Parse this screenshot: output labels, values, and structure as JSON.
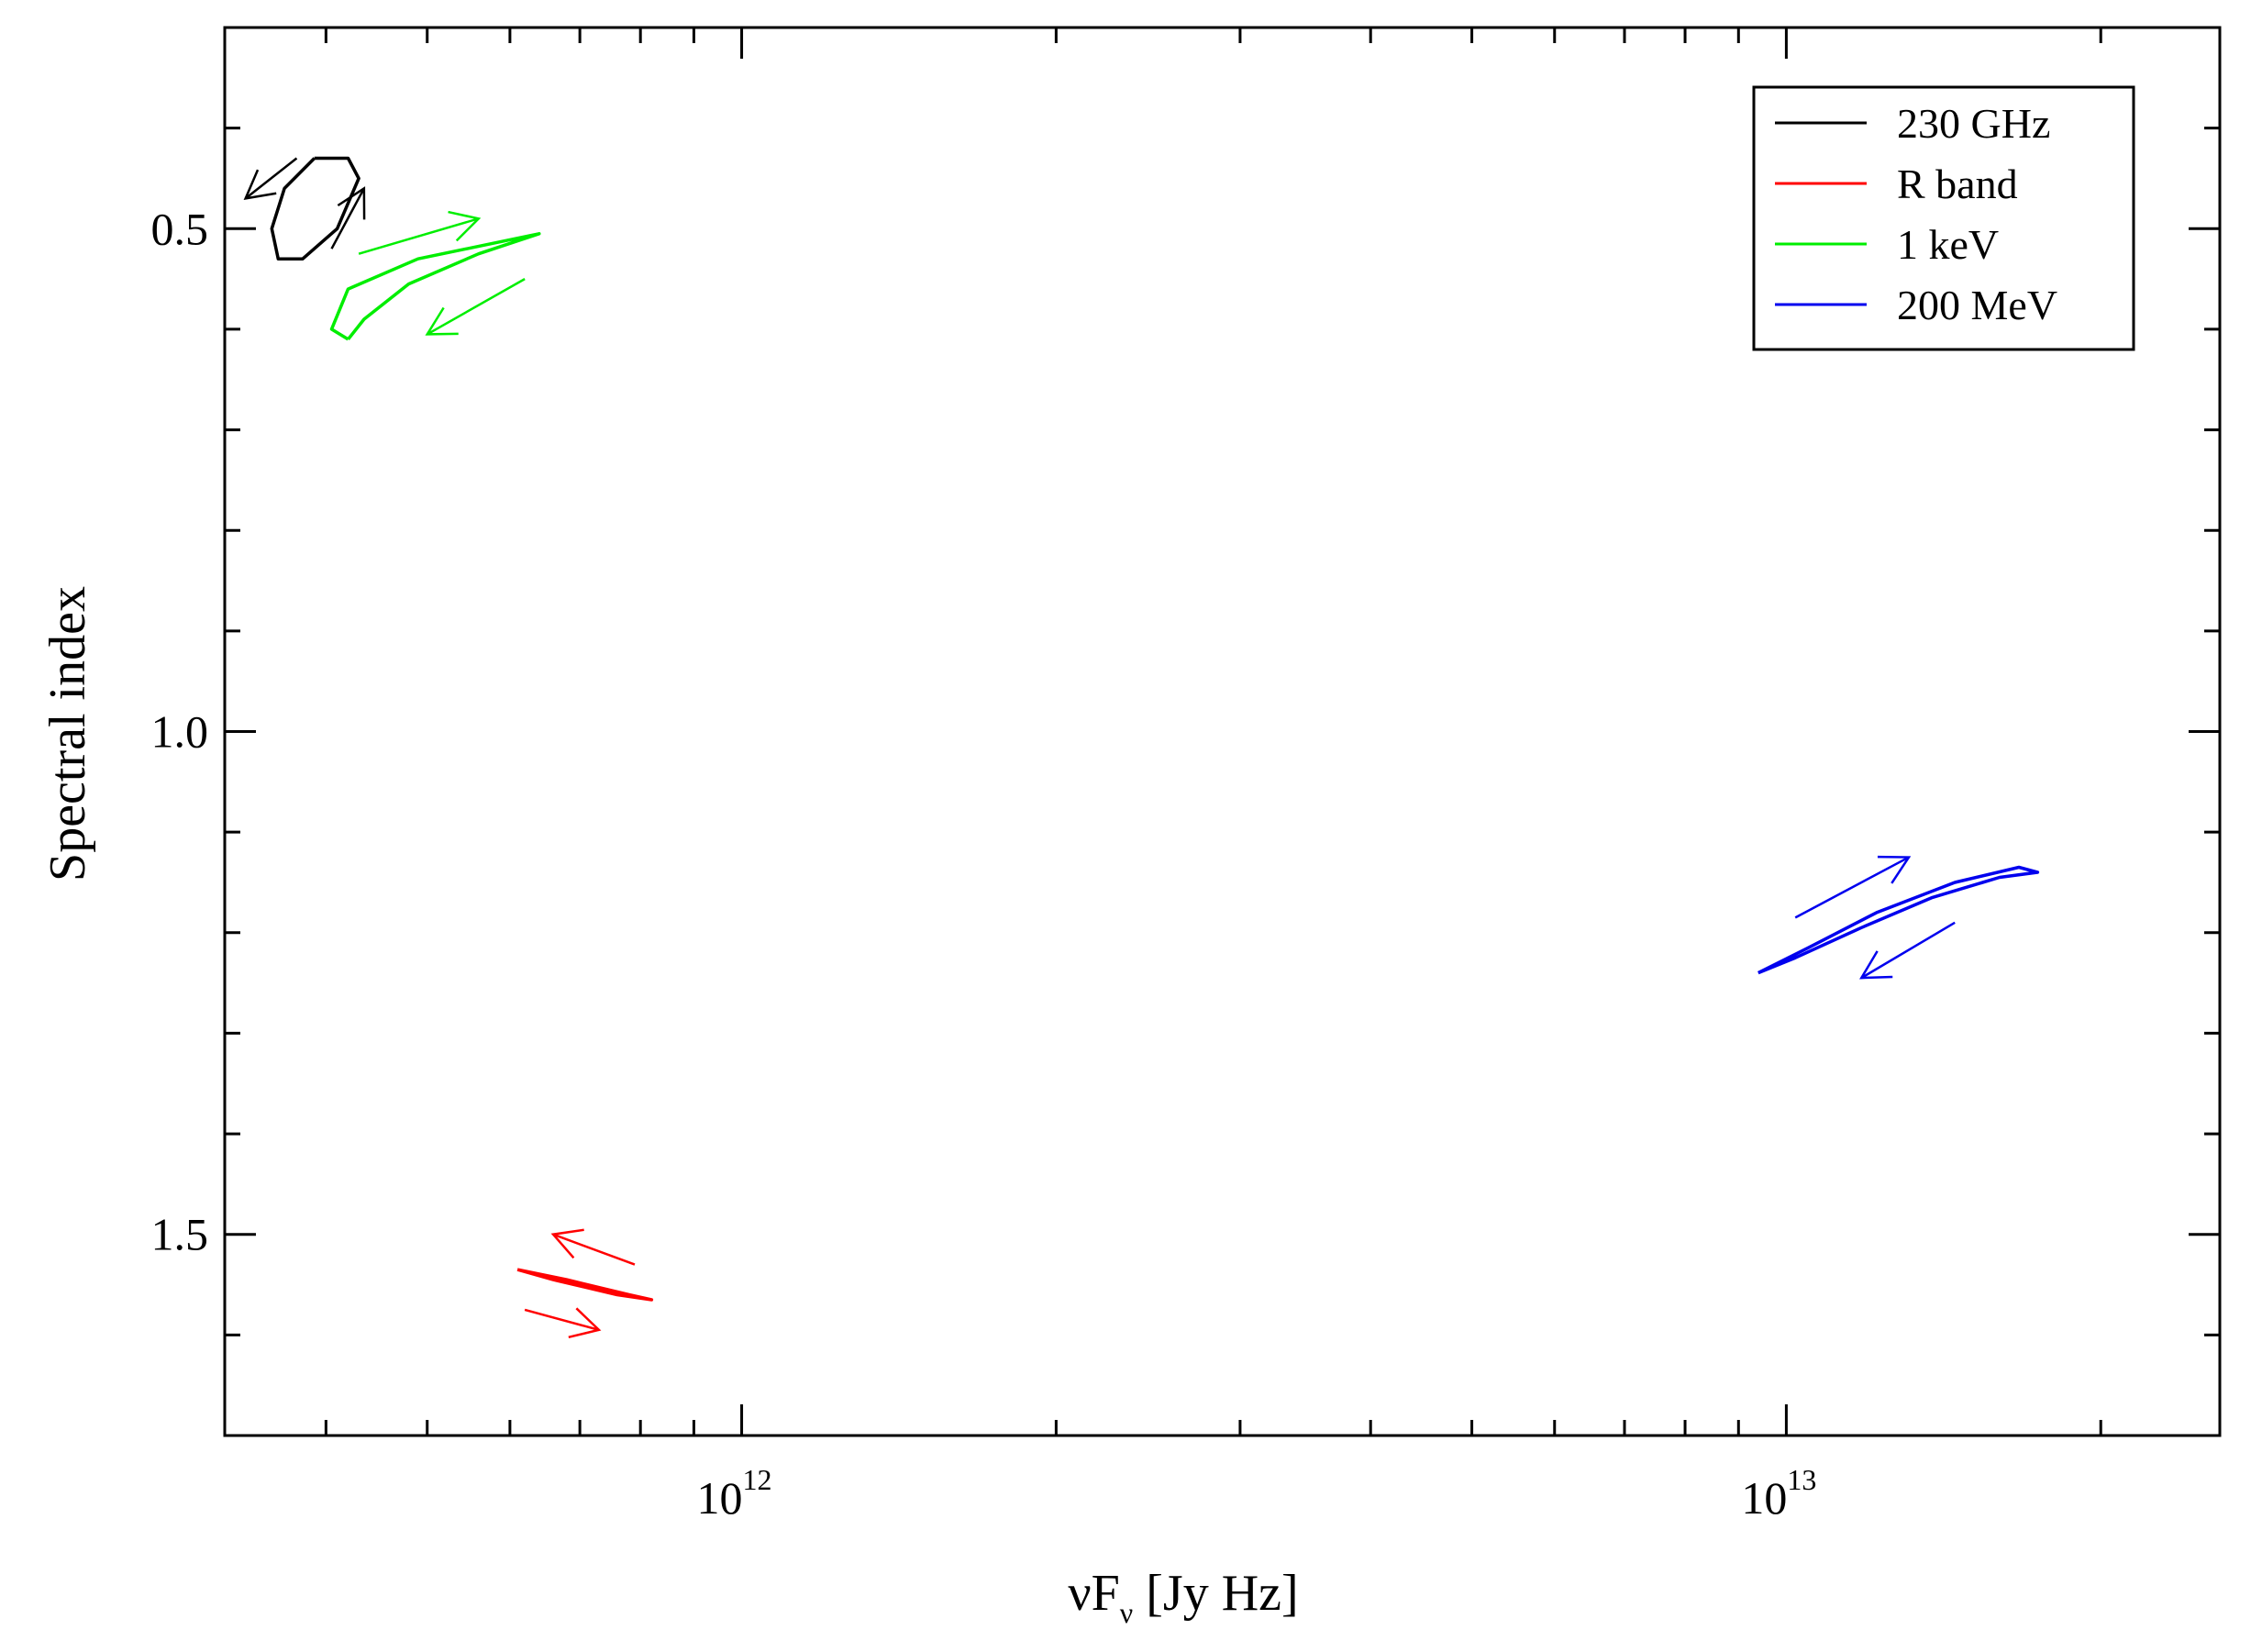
{
  "chart_data": {
    "type": "line",
    "xlabel": "νFν [Jy Hz]",
    "xlabel_parts": {
      "main": "νF",
      "sub": "ν",
      "rest": " [Jy Hz]"
    },
    "ylabel": "Spectral index",
    "x_scale": "log",
    "xlim": [
      320000000000.0,
      26000000000000.0
    ],
    "ylim": [
      0.3,
      1.7
    ],
    "y_inverted": true,
    "x_major_ticks": [
      {
        "value": 1000000000000.0,
        "base": "10",
        "exp": "12"
      },
      {
        "value": 10000000000000.0,
        "base": "10",
        "exp": "13"
      }
    ],
    "y_major_ticks": [
      {
        "value": 0.5,
        "label": "0.5"
      },
      {
        "value": 1.0,
        "label": "1.0"
      },
      {
        "value": 1.5,
        "label": "1.5"
      }
    ],
    "y_minor_step": 0.1,
    "grid": false,
    "legend_position": "top-right",
    "series": [
      {
        "name": "230 GHz",
        "color": "#000000",
        "points": [
          [
            390000000000.0,
            0.43
          ],
          [
            420000000000.0,
            0.43
          ],
          [
            430000000000.0,
            0.45
          ],
          [
            410000000000.0,
            0.5
          ],
          [
            380000000000.0,
            0.53
          ],
          [
            360000000000.0,
            0.53
          ],
          [
            355000000000.0,
            0.5
          ],
          [
            365000000000.0,
            0.46
          ],
          [
            390000000000.0,
            0.43
          ]
        ],
        "arrows": [
          {
            "from": [
              375000000000.0,
              0.43
            ],
            "to": [
              335000000000.0,
              0.47
            ]
          },
          {
            "from": [
              405000000000.0,
              0.52
            ],
            "to": [
              435000000000.0,
              0.46
            ]
          }
        ]
      },
      {
        "name": "R band",
        "color": "#ff0000",
        "points": [
          [
            610000000000.0,
            1.535
          ],
          [
            680000000000.0,
            1.545
          ],
          [
            780000000000.0,
            1.56
          ],
          [
            820000000000.0,
            1.565
          ],
          [
            760000000000.0,
            1.56
          ],
          [
            660000000000.0,
            1.545
          ],
          [
            610000000000.0,
            1.535
          ]
        ],
        "arrows": [
          {
            "from": [
              790000000000.0,
              1.53
            ],
            "to": [
              660000000000.0,
              1.5
            ]
          },
          {
            "from": [
              620000000000.0,
              1.575
            ],
            "to": [
              730000000000.0,
              1.595
            ]
          }
        ]
      },
      {
        "name": "1 keV",
        "color": "#00ee00",
        "points": [
          [
            420000000000.0,
            0.61
          ],
          [
            405000000000.0,
            0.6
          ],
          [
            420000000000.0,
            0.56
          ],
          [
            490000000000.0,
            0.53
          ],
          [
            640000000000.0,
            0.505
          ],
          [
            560000000000.0,
            0.525
          ],
          [
            480000000000.0,
            0.555
          ],
          [
            435000000000.0,
            0.59
          ],
          [
            420000000000.0,
            0.61
          ]
        ],
        "arrows": [
          {
            "from": [
              430000000000.0,
              0.525
            ],
            "to": [
              560000000000.0,
              0.49
            ]
          },
          {
            "from": [
              620000000000.0,
              0.55
            ],
            "to": [
              500000000000.0,
              0.605
            ]
          }
        ]
      },
      {
        "name": "200 MeV",
        "color": "#0000ee",
        "points": [
          [
            9400000000000.0,
            1.24
          ],
          [
            10500000000000.0,
            1.215
          ],
          [
            12200000000000.0,
            1.18
          ],
          [
            14500000000000.0,
            1.15
          ],
          [
            16700000000000.0,
            1.135
          ],
          [
            17400000000000.0,
            1.14
          ],
          [
            16000000000000.0,
            1.145
          ],
          [
            13800000000000.0,
            1.165
          ],
          [
            11800000000000.0,
            1.195
          ],
          [
            10200000000000.0,
            1.225
          ],
          [
            9400000000000.0,
            1.24
          ]
        ],
        "arrows": [
          {
            "from": [
              10200000000000.0,
              1.185
            ],
            "to": [
              13100000000000.0,
              1.125
            ]
          },
          {
            "from": [
              14500000000000.0,
              1.19
            ],
            "to": [
              11800000000000.0,
              1.245
            ]
          }
        ]
      }
    ]
  }
}
